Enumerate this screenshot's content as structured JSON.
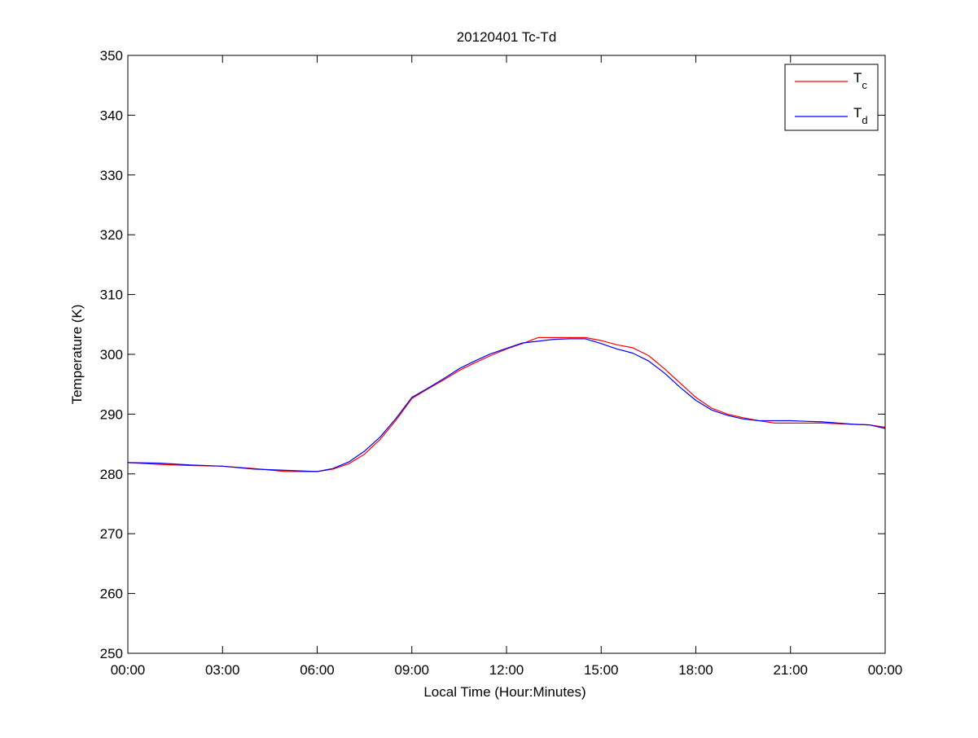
{
  "chart_data": {
    "type": "line",
    "title": "20120401 Tc-Td",
    "xlabel": "Local Time (Hour:Minutes)",
    "ylabel": "Temperature (K)",
    "xlim": [
      "00:00",
      "24:00"
    ],
    "ylim": [
      250,
      350
    ],
    "x_tick_labels": [
      "00:00",
      "03:00",
      "06:00",
      "09:00",
      "12:00",
      "15:00",
      "18:00",
      "21:00",
      "00:00"
    ],
    "y_tick_values": [
      250,
      260,
      270,
      280,
      290,
      300,
      310,
      320,
      330,
      340,
      350
    ],
    "grid": false,
    "legend_position": "top-right",
    "x": [
      "00:00",
      "01:00",
      "02:00",
      "03:00",
      "04:00",
      "05:00",
      "06:00",
      "06:30",
      "07:00",
      "07:30",
      "08:00",
      "08:30",
      "09:00",
      "09:30",
      "10:00",
      "10:30",
      "11:00",
      "11:30",
      "12:00",
      "12:30",
      "13:00",
      "13:30",
      "14:00",
      "14:30",
      "15:00",
      "15:30",
      "16:00",
      "16:30",
      "17:00",
      "17:30",
      "18:00",
      "18:30",
      "19:00",
      "19:30",
      "20:00",
      "20:30",
      "21:00",
      "21:30",
      "22:00",
      "22:30",
      "23:00",
      "23:30",
      "24:00"
    ],
    "series": [
      {
        "name": "T",
        "name_subscript": "c",
        "color": "#ff0000",
        "values": [
          281.9,
          281.6,
          281.4,
          281.3,
          280.9,
          280.4,
          280.4,
          280.8,
          281.7,
          283.3,
          285.8,
          289.0,
          292.6,
          294.2,
          295.7,
          297.3,
          298.6,
          299.8,
          300.9,
          301.8,
          302.8,
          302.8,
          302.8,
          302.8,
          302.3,
          301.6,
          301.1,
          299.8,
          297.6,
          295.2,
          292.8,
          291.0,
          290.0,
          289.4,
          288.9,
          288.5,
          288.5,
          288.5,
          288.5,
          288.4,
          288.3,
          288.2,
          287.8
        ]
      },
      {
        "name": "T",
        "name_subscript": "d",
        "color": "#0000ff",
        "values": [
          281.9,
          281.8,
          281.5,
          281.3,
          280.8,
          280.6,
          280.4,
          280.9,
          282.0,
          283.8,
          286.2,
          289.3,
          292.8,
          294.3,
          295.9,
          297.6,
          298.9,
          300.1,
          301.0,
          301.9,
          302.2,
          302.5,
          302.6,
          302.6,
          301.8,
          300.9,
          300.2,
          298.9,
          296.9,
          294.5,
          292.3,
          290.7,
          289.8,
          289.2,
          288.9,
          288.9,
          288.9,
          288.8,
          288.7,
          288.5,
          288.3,
          288.2,
          287.6
        ]
      }
    ]
  },
  "colors": {
    "background": "#ffffff",
    "axes": "#000000",
    "series_c": "#ff0000",
    "series_d": "#0000ff"
  }
}
